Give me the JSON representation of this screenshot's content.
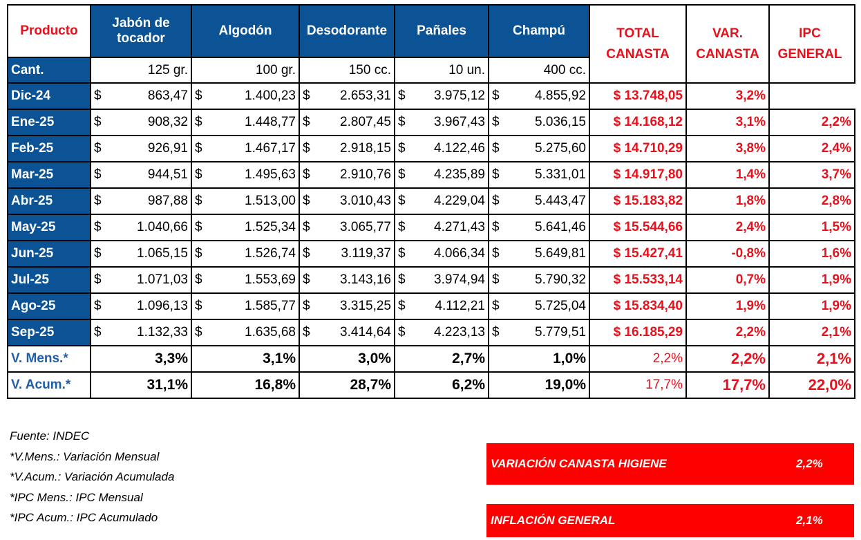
{
  "header": {
    "product_label": "Producto",
    "products": [
      "Jabón de tocador",
      "Algodón",
      "Desodorante",
      "Pañales",
      "Champú"
    ],
    "total": "TOTAL CANASTA",
    "var": "VAR. CANASTA",
    "ipc": "IPC GENERAL",
    "qty_label": "Cant.",
    "quantities": [
      "125 gr.",
      "100 gr.",
      "150 cc.",
      "10 un.",
      "400 cc."
    ]
  },
  "currency": "$",
  "rows": [
    {
      "month": "Dic-24",
      "prices": [
        "863,47",
        "1.400,23",
        "2.653,31",
        "3.975,12",
        "4.855,92"
      ],
      "total": "$ 13.748,05",
      "var": "3,2%",
      "ipc": ""
    },
    {
      "month": "Ene-25",
      "prices": [
        "908,32",
        "1.448,77",
        "2.807,45",
        "3.967,43",
        "5.036,15"
      ],
      "total": "$ 14.168,12",
      "var": "3,1%",
      "ipc": "2,2%"
    },
    {
      "month": "Feb-25",
      "prices": [
        "926,91",
        "1.467,17",
        "2.918,15",
        "4.122,46",
        "5.275,60"
      ],
      "total": "$ 14.710,29",
      "var": "3,8%",
      "ipc": "2,4%"
    },
    {
      "month": "Mar-25",
      "prices": [
        "944,51",
        "1.495,63",
        "2.910,76",
        "4.235,89",
        "5.331,01"
      ],
      "total": "$ 14.917,80",
      "var": "1,4%",
      "ipc": "3,7%"
    },
    {
      "month": "Abr-25",
      "prices": [
        "987,88",
        "1.513,00",
        "3.010,43",
        "4.229,04",
        "5.443,47"
      ],
      "total": "$ 15.183,82",
      "var": "1,8%",
      "ipc": "2,8%"
    },
    {
      "month": "May-25",
      "prices": [
        "1.040,66",
        "1.525,34",
        "3.065,77",
        "4.271,43",
        "5.641,46"
      ],
      "total": "$ 15.544,66",
      "var": "2,4%",
      "ipc": "1,5%"
    },
    {
      "month": "Jun-25",
      "prices": [
        "1.065,15",
        "1.526,74",
        "3.119,37",
        "4.066,34",
        "5.649,81"
      ],
      "total": "$ 15.427,41",
      "var": "-0,8%",
      "ipc": "1,6%"
    },
    {
      "month": "Jul-25",
      "prices": [
        "1.071,03",
        "1.553,69",
        "3.143,16",
        "3.974,94",
        "5.790,32"
      ],
      "total": "$ 15.533,14",
      "var": "0,7%",
      "ipc": "1,9%"
    },
    {
      "month": "Ago-25",
      "prices": [
        "1.096,13",
        "1.585,77",
        "3.315,25",
        "4.112,21",
        "5.725,04"
      ],
      "total": "$ 15.834,40",
      "var": "1,9%",
      "ipc": "1,9%"
    },
    {
      "month": "Sep-25",
      "prices": [
        "1.132,33",
        "1.635,68",
        "3.414,64",
        "4.223,13",
        "5.779,51"
      ],
      "total": "$ 16.185,29",
      "var": "2,2%",
      "ipc": "2,1%"
    }
  ],
  "summary": [
    {
      "label": "V. Mens.*",
      "values": [
        "3,3%",
        "3,1%",
        "3,0%",
        "2,7%",
        "1,0%"
      ],
      "total": "2,2%",
      "var": "2,2%",
      "ipc": "2,1%"
    },
    {
      "label": "V. Acum.*",
      "values": [
        "31,1%",
        "16,8%",
        "28,7%",
        "6,2%",
        "19,0%"
      ],
      "total": "17,7%",
      "var": "17,7%",
      "ipc": "22,0%"
    }
  ],
  "notes": [
    "Fuente: INDEC",
    "*V.Mens.: Variación Mensual",
    "*V.Acum.: Variación Acumulada",
    "*IPC Mens.: IPC Mensual",
    "*IPC Acum.: IPC Acumulado"
  ],
  "boxes": [
    {
      "label": "VARIACIÓN CANASTA HIGIENE",
      "value": "2,2%"
    },
    {
      "label": "INFLACIÓN GENERAL",
      "value": "2,1%"
    }
  ],
  "colors": {
    "header_blue": "#0b5394",
    "accent_red": "#e8101a",
    "box_red": "#ff0000"
  }
}
